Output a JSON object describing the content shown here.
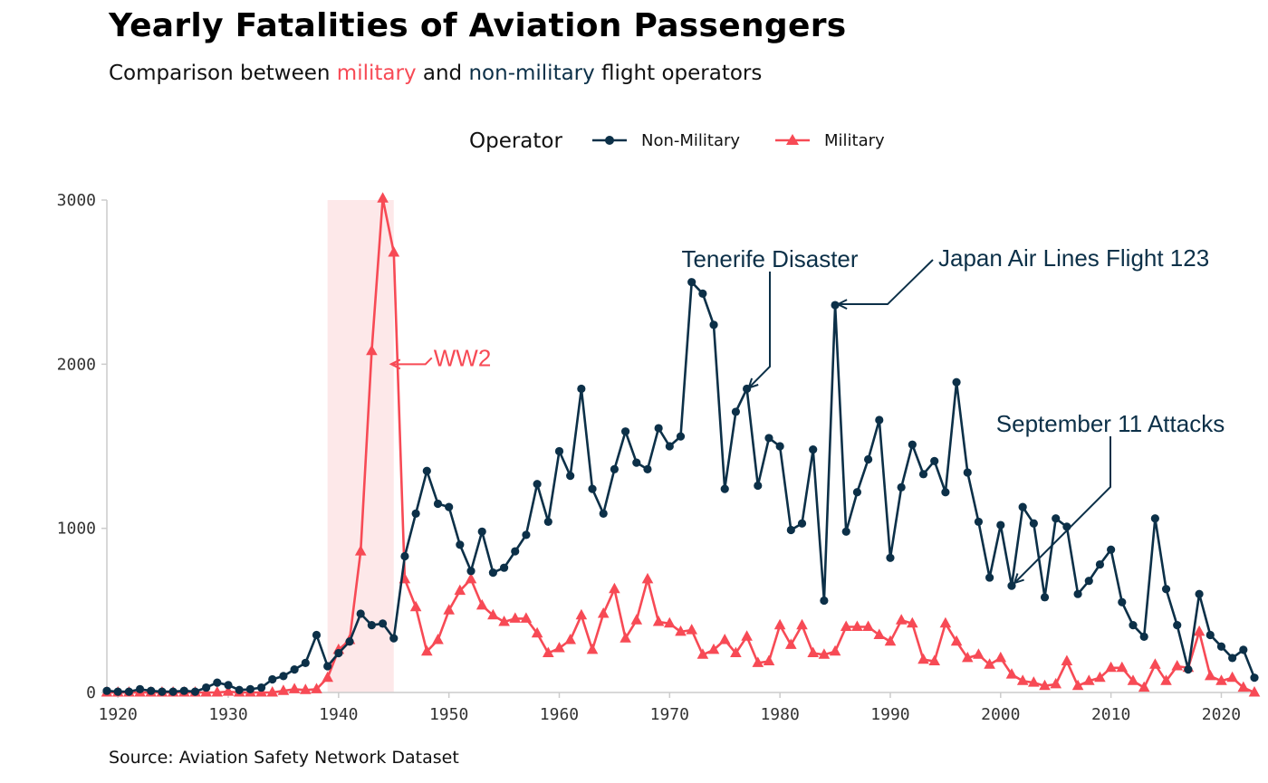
{
  "title": "Yearly Fatalities of Aviation Passengers",
  "subtitle": {
    "prefix": "Comparison between ",
    "military_word": "military",
    "middle": " and ",
    "nonmilitary_word": "non-military",
    "suffix": " flight operators"
  },
  "caption": "Source: Aviation Safety Network Dataset",
  "colors": {
    "military": "#f74a55",
    "non_military": "#0c3048",
    "ww2_band": "#fde8e9",
    "axis": "#cccccc"
  },
  "chart_data": {
    "type": "line",
    "xlabel": "",
    "ylabel": "",
    "xlim": [
      1919,
      2023
    ],
    "ylim": [
      0,
      3000
    ],
    "x_ticks": [
      "1920",
      "1930",
      "1940",
      "1950",
      "1960",
      "1970",
      "1980",
      "1990",
      "2000",
      "2010",
      "2020"
    ],
    "y_ticks": [
      "0",
      "1000",
      "2000",
      "3000"
    ],
    "legend": {
      "title": "Operator",
      "placement": "top-center"
    },
    "highlight_band": {
      "from": 1939,
      "to": 1945,
      "label": "WW2"
    },
    "series": [
      {
        "name": "Non-Military",
        "marker": "circle",
        "x": [
          1919,
          1920,
          1921,
          1922,
          1923,
          1924,
          1925,
          1926,
          1927,
          1928,
          1929,
          1930,
          1931,
          1932,
          1933,
          1934,
          1935,
          1936,
          1937,
          1938,
          1939,
          1940,
          1941,
          1942,
          1943,
          1944,
          1945,
          1946,
          1947,
          1948,
          1949,
          1950,
          1951,
          1952,
          1953,
          1954,
          1955,
          1956,
          1957,
          1958,
          1959,
          1960,
          1961,
          1962,
          1963,
          1964,
          1965,
          1966,
          1967,
          1968,
          1969,
          1970,
          1971,
          1972,
          1973,
          1974,
          1975,
          1976,
          1977,
          1978,
          1979,
          1980,
          1981,
          1982,
          1983,
          1984,
          1985,
          1986,
          1987,
          1988,
          1989,
          1990,
          1991,
          1992,
          1993,
          1994,
          1995,
          1996,
          1997,
          1998,
          1999,
          2000,
          2001,
          2002,
          2003,
          2004,
          2005,
          2006,
          2007,
          2008,
          2009,
          2010,
          2011,
          2012,
          2013,
          2014,
          2015,
          2016,
          2017,
          2018,
          2019,
          2020,
          2021,
          2022,
          2023
        ],
        "values": [
          10,
          5,
          5,
          20,
          10,
          5,
          5,
          10,
          5,
          30,
          60,
          45,
          15,
          20,
          30,
          80,
          100,
          140,
          180,
          350,
          160,
          240,
          310,
          480,
          410,
          420,
          330,
          830,
          1090,
          1350,
          1150,
          1130,
          900,
          740,
          980,
          730,
          760,
          860,
          960,
          1270,
          1040,
          1470,
          1320,
          1850,
          1240,
          1090,
          1360,
          1590,
          1400,
          1360,
          1610,
          1500,
          1560,
          2500,
          2430,
          2240,
          1240,
          1710,
          1850,
          1260,
          1550,
          1500,
          990,
          1030,
          1480,
          560,
          2360,
          980,
          1220,
          1420,
          1660,
          820,
          1250,
          1510,
          1330,
          1410,
          1220,
          1890,
          1340,
          1040,
          700,
          1020,
          650,
          1130,
          1030,
          580,
          1060,
          1010,
          600,
          680,
          780,
          870,
          550,
          410,
          340,
          1060,
          630,
          410,
          140,
          600,
          350,
          280,
          210,
          260,
          90
        ]
      },
      {
        "name": "Military",
        "marker": "triangle",
        "x": [
          1919,
          1920,
          1921,
          1922,
          1923,
          1924,
          1925,
          1926,
          1927,
          1928,
          1929,
          1930,
          1931,
          1932,
          1933,
          1934,
          1935,
          1936,
          1937,
          1938,
          1939,
          1940,
          1941,
          1942,
          1943,
          1944,
          1945,
          1946,
          1947,
          1948,
          1949,
          1950,
          1951,
          1952,
          1953,
          1954,
          1955,
          1956,
          1957,
          1958,
          1959,
          1960,
          1961,
          1962,
          1963,
          1964,
          1965,
          1966,
          1967,
          1968,
          1969,
          1970,
          1971,
          1972,
          1973,
          1974,
          1975,
          1976,
          1977,
          1978,
          1979,
          1980,
          1981,
          1982,
          1983,
          1984,
          1985,
          1986,
          1987,
          1988,
          1989,
          1990,
          1991,
          1992,
          1993,
          1994,
          1995,
          1996,
          1997,
          1998,
          1999,
          2000,
          2001,
          2002,
          2003,
          2004,
          2005,
          2006,
          2007,
          2008,
          2009,
          2010,
          2011,
          2012,
          2013,
          2014,
          2015,
          2016,
          2017,
          2018,
          2019,
          2020,
          2021,
          2022,
          2023
        ],
        "values": [
          0,
          0,
          0,
          0,
          0,
          0,
          0,
          0,
          0,
          0,
          0,
          5,
          0,
          0,
          0,
          0,
          10,
          20,
          15,
          20,
          90,
          260,
          320,
          860,
          2080,
          3010,
          2680,
          690,
          520,
          250,
          320,
          500,
          620,
          690,
          530,
          470,
          430,
          450,
          450,
          360,
          240,
          270,
          320,
          470,
          260,
          480,
          630,
          330,
          440,
          690,
          430,
          420,
          370,
          380,
          230,
          260,
          320,
          240,
          340,
          180,
          190,
          410,
          290,
          410,
          240,
          230,
          250,
          400,
          400,
          400,
          350,
          310,
          440,
          420,
          200,
          190,
          420,
          310,
          210,
          230,
          170,
          210,
          110,
          70,
          60,
          40,
          50,
          190,
          40,
          70,
          90,
          150,
          150,
          70,
          30,
          170,
          70,
          160,
          150,
          370,
          100,
          70,
          90,
          30,
          0
        ]
      }
    ],
    "annotations": [
      {
        "label": "WW2",
        "x": 1945,
        "y": 2000,
        "series": "Military"
      },
      {
        "label": "Tenerife Disaster",
        "x": 1977,
        "y": 1850,
        "series": "Non-Military"
      },
      {
        "label": "Japan Air Lines Flight 123",
        "x": 1985,
        "y": 2360,
        "series": "Non-Military"
      },
      {
        "label": "September 11 Attacks",
        "x": 2001,
        "y": 650,
        "series": "Non-Military"
      }
    ]
  }
}
